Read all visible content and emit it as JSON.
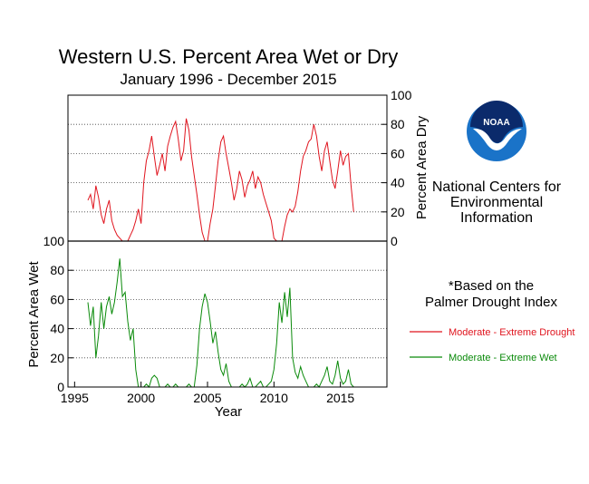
{
  "colors": {
    "dry": "#e0141e",
    "wet": "#0a8a0a",
    "noaa_blue": "#1a73c8",
    "noaa_navy": "#0b2a6b",
    "grid": "#444444"
  },
  "title": "Western U.S. Percent Area Wet or Dry",
  "subtitle": "January 1996 - December 2015",
  "logo": {
    "badge_text": "NOAA",
    "org_lines": [
      "National Centers for",
      "Environmental",
      "Information"
    ]
  },
  "note_lines": [
    "*Based on the",
    "Palmer Drought Index"
  ],
  "legend": {
    "dry_label": "Moderate - Extreme Drought",
    "wet_label": "Moderate - Extreme Wet"
  },
  "chart_data": {
    "type": "line",
    "xlabel": "Year",
    "xlim": [
      1994.5,
      2018.5
    ],
    "xticks": [
      1995,
      2000,
      2005,
      2010,
      2015
    ],
    "xtick_labels": [
      "1995",
      "2000",
      "2005",
      "2010",
      "2015"
    ],
    "dry_panel": {
      "ylabel": "Percent Area Dry",
      "ylim": [
        0,
        100
      ],
      "yticks": [
        0,
        20,
        40,
        60,
        80,
        100
      ],
      "ytick_labels": [
        "0",
        "20",
        "40",
        "60",
        "80",
        "100"
      ],
      "gridlines": [
        20,
        40,
        60,
        80
      ],
      "series": {
        "name": "Moderate - Extreme Drought",
        "x": [
          1996.0,
          1996.2,
          1996.4,
          1996.6,
          1996.8,
          1997.0,
          1997.2,
          1997.4,
          1997.6,
          1997.8,
          1998.0,
          1998.2,
          1998.4,
          1998.6,
          1998.8,
          1999.0,
          1999.2,
          1999.4,
          1999.6,
          1999.8,
          2000.0,
          2000.2,
          2000.4,
          2000.6,
          2000.8,
          2001.0,
          2001.2,
          2001.4,
          2001.6,
          2001.8,
          2002.0,
          2002.2,
          2002.4,
          2002.6,
          2002.8,
          2003.0,
          2003.2,
          2003.4,
          2003.6,
          2003.8,
          2004.0,
          2004.2,
          2004.4,
          2004.6,
          2004.8,
          2005.0,
          2005.2,
          2005.4,
          2005.6,
          2005.8,
          2006.0,
          2006.2,
          2006.4,
          2006.6,
          2006.8,
          2007.0,
          2007.2,
          2007.4,
          2007.6,
          2007.8,
          2008.0,
          2008.2,
          2008.4,
          2008.6,
          2008.8,
          2009.0,
          2009.2,
          2009.4,
          2009.6,
          2009.8,
          2010.0,
          2010.2,
          2010.4,
          2010.6,
          2010.8,
          2011.0,
          2011.2,
          2011.4,
          2011.6,
          2011.8,
          2012.0,
          2012.2,
          2012.4,
          2012.6,
          2012.8,
          2013.0,
          2013.2,
          2013.4,
          2013.6,
          2013.8,
          2014.0,
          2014.2,
          2014.4,
          2014.6,
          2014.8,
          2015.0,
          2015.2,
          2015.4,
          2015.6,
          2015.8,
          2016.0
        ],
        "values": [
          28,
          32,
          22,
          38,
          30,
          18,
          12,
          22,
          28,
          14,
          8,
          4,
          2,
          0,
          0,
          0,
          4,
          8,
          14,
          22,
          12,
          40,
          55,
          62,
          72,
          58,
          45,
          52,
          60,
          48,
          65,
          72,
          78,
          82,
          70,
          55,
          62,
          84,
          76,
          58,
          45,
          32,
          18,
          6,
          0,
          0,
          12,
          22,
          38,
          55,
          68,
          72,
          60,
          50,
          40,
          28,
          36,
          48,
          42,
          30,
          38,
          42,
          48,
          36,
          44,
          40,
          32,
          26,
          20,
          14,
          2,
          0,
          0,
          0,
          10,
          18,
          22,
          20,
          24,
          34,
          48,
          58,
          62,
          68,
          70,
          80,
          72,
          58,
          48,
          62,
          68,
          55,
          42,
          36,
          48,
          62,
          52,
          58,
          60,
          38,
          20
        ]
      }
    },
    "wet_panel": {
      "ylabel": "Percent Area Wet",
      "ylim": [
        0,
        100
      ],
      "yticks": [
        0,
        20,
        40,
        60,
        80,
        100
      ],
      "ytick_labels": [
        "0",
        "20",
        "40",
        "60",
        "80",
        "100"
      ],
      "gridlines": [
        20,
        40,
        60,
        80
      ],
      "series": {
        "name": "Moderate - Extreme Wet",
        "x": [
          1996.0,
          1996.2,
          1996.4,
          1996.6,
          1996.8,
          1997.0,
          1997.2,
          1997.4,
          1997.6,
          1997.8,
          1998.0,
          1998.2,
          1998.4,
          1998.6,
          1998.8,
          1999.0,
          1999.2,
          1999.4,
          1999.6,
          1999.8,
          2000.0,
          2000.2,
          2000.4,
          2000.6,
          2000.8,
          2001.0,
          2001.2,
          2001.4,
          2001.6,
          2001.8,
          2002.0,
          2002.2,
          2002.4,
          2002.6,
          2002.8,
          2003.0,
          2003.2,
          2003.4,
          2003.6,
          2003.8,
          2004.0,
          2004.2,
          2004.4,
          2004.6,
          2004.8,
          2005.0,
          2005.2,
          2005.4,
          2005.6,
          2005.8,
          2006.0,
          2006.2,
          2006.4,
          2006.6,
          2006.8,
          2007.0,
          2007.2,
          2007.4,
          2007.6,
          2007.8,
          2008.0,
          2008.2,
          2008.4,
          2008.6,
          2008.8,
          2009.0,
          2009.2,
          2009.4,
          2009.6,
          2009.8,
          2010.0,
          2010.2,
          2010.4,
          2010.6,
          2010.8,
          2011.0,
          2011.2,
          2011.4,
          2011.6,
          2011.8,
          2012.0,
          2012.2,
          2012.4,
          2012.6,
          2012.8,
          2013.0,
          2013.2,
          2013.4,
          2013.6,
          2013.8,
          2014.0,
          2014.2,
          2014.4,
          2014.6,
          2014.8,
          2015.0,
          2015.2,
          2015.4,
          2015.6,
          2015.8,
          2016.0
        ],
        "values": [
          58,
          42,
          55,
          20,
          35,
          58,
          40,
          55,
          62,
          50,
          58,
          72,
          88,
          62,
          65,
          45,
          32,
          40,
          12,
          0,
          0,
          0,
          2,
          0,
          6,
          8,
          6,
          0,
          0,
          0,
          2,
          0,
          0,
          2,
          0,
          0,
          0,
          0,
          2,
          0,
          0,
          15,
          40,
          55,
          64,
          58,
          45,
          30,
          38,
          24,
          12,
          8,
          16,
          4,
          0,
          0,
          0,
          0,
          2,
          0,
          2,
          6,
          0,
          0,
          2,
          4,
          0,
          0,
          2,
          4,
          12,
          30,
          58,
          44,
          65,
          48,
          68,
          20,
          10,
          6,
          14,
          8,
          4,
          0,
          0,
          0,
          2,
          0,
          4,
          8,
          14,
          4,
          2,
          8,
          18,
          6,
          2,
          4,
          12,
          2,
          0
        ]
      }
    }
  }
}
